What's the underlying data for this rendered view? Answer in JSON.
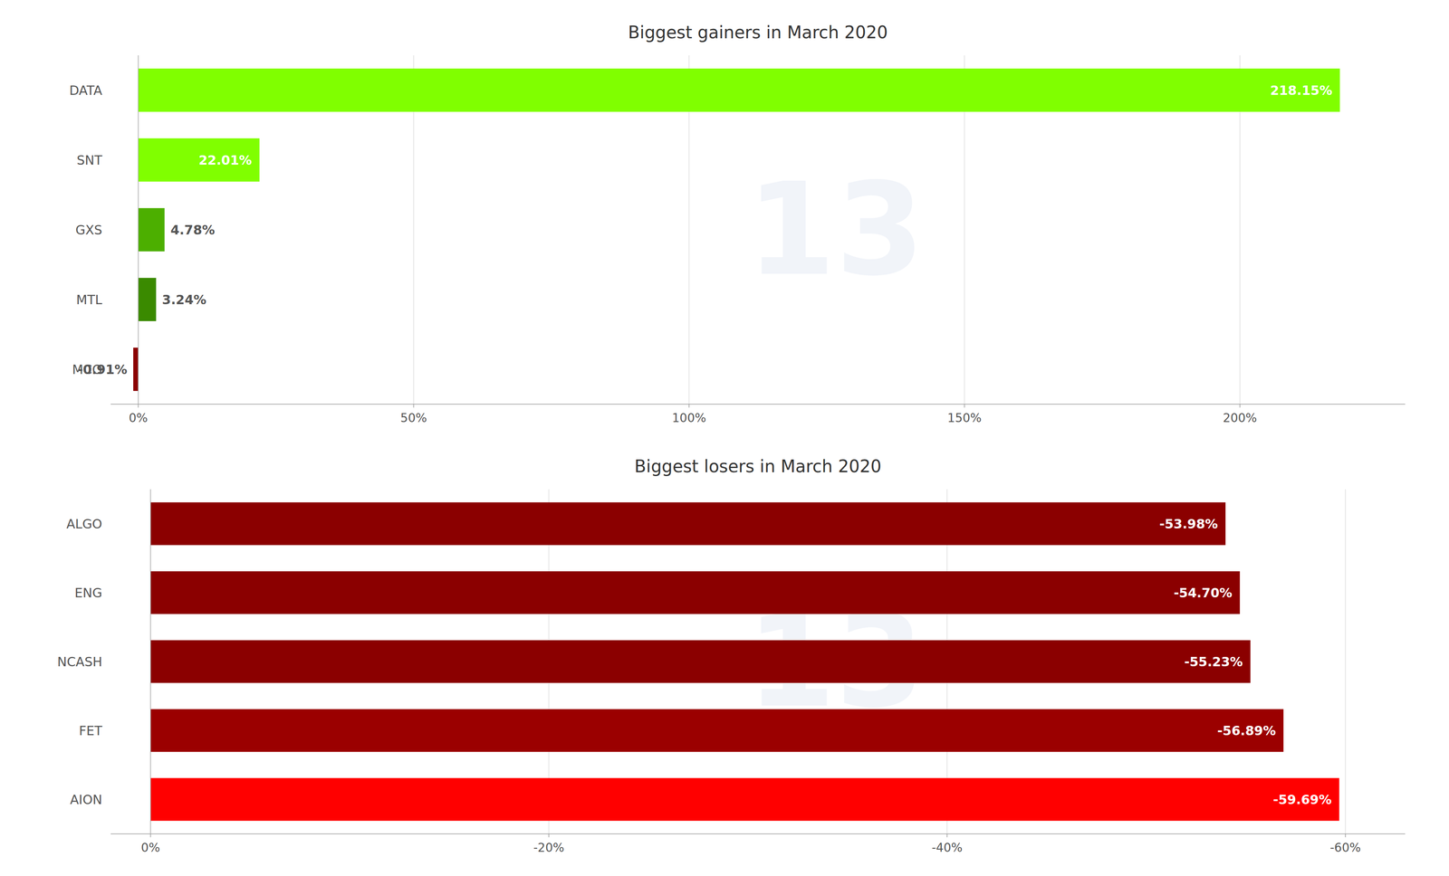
{
  "chart_data": [
    {
      "type": "bar",
      "orientation": "horizontal",
      "title": "Biggest gainers in March 2020",
      "categories": [
        "DATA",
        "SNT",
        "GXS",
        "MTL",
        "MCO"
      ],
      "values": [
        218.15,
        22.01,
        4.78,
        3.24,
        -0.91
      ],
      "value_labels": [
        "218.15%",
        "22.01%",
        "4.78%",
        "3.24%",
        "-0.91%"
      ],
      "colors": [
        "#80ff00",
        "#80ff00",
        "#4caf00",
        "#3a8a00",
        "#8b0000"
      ],
      "xlim": [
        -5,
        230
      ],
      "xticks": [
        {
          "value": 0,
          "label": "0%"
        },
        {
          "value": 50,
          "label": "50%"
        },
        {
          "value": 100,
          "label": "100%"
        },
        {
          "value": 150,
          "label": "150%"
        },
        {
          "value": 200,
          "label": "200%"
        }
      ],
      "grid": true,
      "data_labels": true,
      "annotations": [
        "13"
      ]
    },
    {
      "type": "bar",
      "orientation": "horizontal",
      "title": "Biggest losers in March 2020",
      "categories": [
        "ALGO",
        "ENG",
        "NCASH",
        "FET",
        "AION"
      ],
      "values": [
        -53.98,
        -54.7,
        -55.23,
        -56.89,
        -59.69
      ],
      "value_labels": [
        "-53.98%",
        "-54.70%",
        "-55.23%",
        "-56.89%",
        "-59.69%"
      ],
      "colors": [
        "#8b0000",
        "#8b0000",
        "#8b0000",
        "#9b0000",
        "#ff0000"
      ],
      "xlim": [
        2,
        -63
      ],
      "xticks": [
        {
          "value": 0,
          "label": "0%"
        },
        {
          "value": -20,
          "label": "-20%"
        },
        {
          "value": -40,
          "label": "-40%"
        },
        {
          "value": -60,
          "label": "-60%"
        }
      ],
      "grid": true,
      "data_labels": true,
      "annotations": [
        "13"
      ]
    }
  ]
}
